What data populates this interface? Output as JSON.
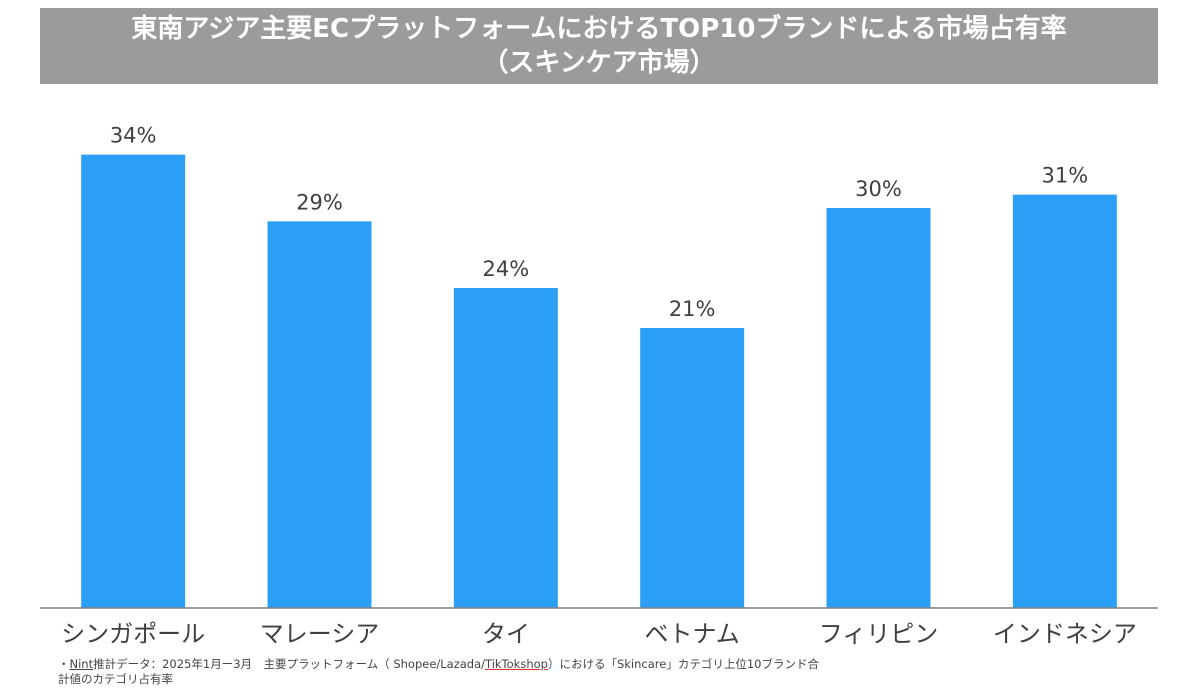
{
  "title": {
    "line1": "東南アジア主要ECプラットフォームにおけるTOP10ブランドによる市場占有率",
    "line2": "（スキンケア市場）"
  },
  "colors": {
    "bar": "#2b9ff5",
    "banner": "#9b9b9b",
    "axis": "#7f7f7f"
  },
  "chart_data": {
    "type": "bar",
    "categories": [
      "シンガポール",
      "マレーシア",
      "タイ",
      "ベトナム",
      "フィリピン",
      "インドネシア"
    ],
    "values": [
      34,
      29,
      24,
      21,
      30,
      31
    ],
    "value_labels": [
      "34%",
      "29%",
      "24%",
      "21%",
      "30%",
      "31%"
    ],
    "unit": "%",
    "ylim": [
      0,
      37.5
    ],
    "grid": false,
    "legend": "none"
  },
  "footnote": {
    "bullet": "・",
    "nint": "Nint",
    "part1": "推計データ：2025年1月ー3月　主要プラットフォーム（ Shopee/Lazada/",
    "tiktok": "TikTokshop",
    "part2": "）における「Skincare」カテゴリ上位10ブランド合",
    "line2": "計値のカテゴリ占有率"
  }
}
